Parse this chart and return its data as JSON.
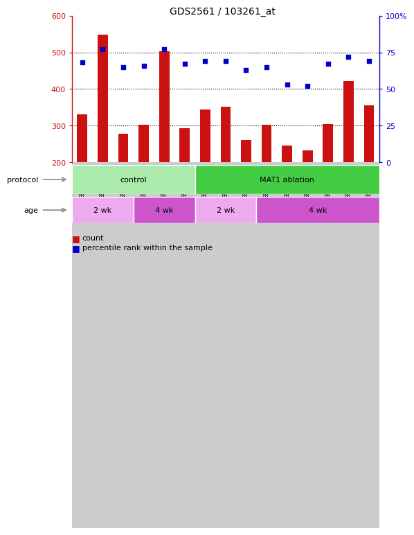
{
  "title": "GDS2561 / 103261_at",
  "samples": [
    "GSM154150",
    "GSM154151",
    "GSM154152",
    "GSM154142",
    "GSM154143",
    "GSM154144",
    "GSM154153",
    "GSM154154",
    "GSM154155",
    "GSM154156",
    "GSM154145",
    "GSM154146",
    "GSM154147",
    "GSM154148",
    "GSM154149"
  ],
  "counts": [
    330,
    548,
    278,
    303,
    503,
    293,
    344,
    352,
    260,
    302,
    245,
    233,
    305,
    422,
    355
  ],
  "percentile_ranks": [
    68,
    77,
    65,
    66,
    77,
    67,
    69,
    69,
    63,
    65,
    53,
    52,
    67,
    72,
    69
  ],
  "ylim_left": [
    200,
    600
  ],
  "ylim_right": [
    0,
    100
  ],
  "yticks_left": [
    200,
    300,
    400,
    500,
    600
  ],
  "yticks_right": [
    0,
    25,
    50,
    75,
    100
  ],
  "bar_color": "#cc1111",
  "dot_color": "#0000cc",
  "protocol_groups": [
    {
      "label": "control",
      "start": 0,
      "end": 6,
      "color": "#aaeaaa"
    },
    {
      "label": "MAT1 ablation",
      "start": 6,
      "end": 15,
      "color": "#44cc44"
    }
  ],
  "age_groups": [
    {
      "label": "2 wk",
      "start": 0,
      "end": 3,
      "color": "#eeaaee"
    },
    {
      "label": "4 wk",
      "start": 3,
      "end": 6,
      "color": "#cc55cc"
    },
    {
      "label": "2 wk",
      "start": 6,
      "end": 9,
      "color": "#eeaaee"
    },
    {
      "label": "4 wk",
      "start": 9,
      "end": 15,
      "color": "#cc55cc"
    }
  ],
  "tick_area_color": "#cccccc",
  "gridline_vals": [
    300,
    400,
    500
  ],
  "right_tick_labels": [
    "0",
    "25",
    "50",
    "75",
    "100%"
  ]
}
